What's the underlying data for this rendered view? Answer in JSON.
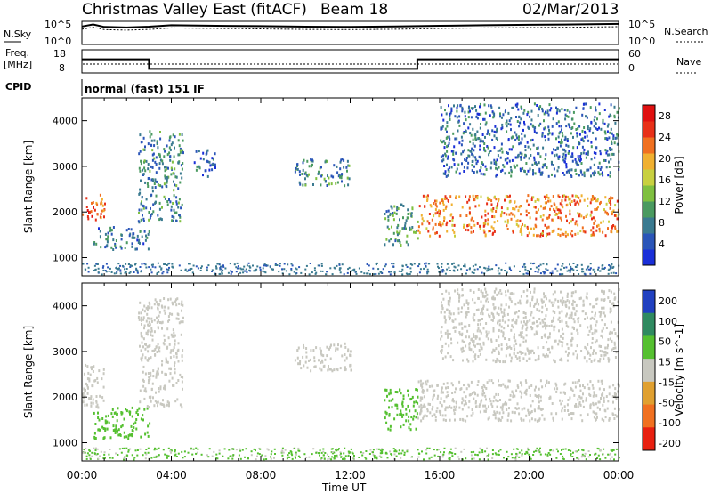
{
  "header": {
    "radar": "Christmas Valley East (fitACF)",
    "beam": "Beam 18",
    "date": "02/Mar/2013"
  },
  "noise_panel": {
    "left_label": "N.Sky",
    "right_label": "N.Search",
    "left_ticks": [
      "10^5",
      "10^0"
    ],
    "right_ticks": [
      "10^5",
      "10^0"
    ]
  },
  "freq_panel": {
    "left_label_1": "Freq.",
    "left_label_2": "[MHz]",
    "right_label": "Nave",
    "left_ticks": [
      "18",
      "8"
    ],
    "right_ticks": [
      "60",
      "0"
    ]
  },
  "cpid": {
    "label": "CPID",
    "value": "normal (fast) 151 IF"
  },
  "time_axis": {
    "label": "Time UT",
    "ticks": [
      "00:00",
      "04:00",
      "08:00",
      "12:00",
      "16:00",
      "20:00",
      "00:00"
    ]
  },
  "colors": {
    "power": [
      "#1a2fd8",
      "#2a55b8",
      "#3a7a90",
      "#4a9a60",
      "#7fc040",
      "#c8d040",
      "#f0b030",
      "#f07020",
      "#e83018",
      "#e01010"
    ],
    "velocity": [
      "#2040c0",
      "#2f8a60",
      "#55c030",
      "#c8c8c0",
      "#e0a030",
      "#f07020",
      "#e82010"
    ]
  },
  "chart_data": [
    {
      "type": "line",
      "title": "",
      "xlabel": "",
      "ylabel": "N.Sky",
      "x": [
        0,
        0.5,
        1,
        2,
        3,
        4,
        6,
        8,
        10,
        12,
        14,
        15,
        16,
        18,
        20,
        22,
        24
      ],
      "series": [
        {
          "values": [
            10000,
            30000,
            8000,
            6000,
            9000,
            20000,
            15000,
            12000,
            9000,
            8000,
            10000,
            12000,
            15000,
            20000,
            25000,
            30000,
            40000
          ]
        }
      ],
      "yscale": "log",
      "ylim": [
        1,
        100000
      ]
    },
    {
      "type": "line",
      "title": "",
      "ylabel": "Freq. [MHz]",
      "x": [
        0,
        3,
        3,
        15,
        15,
        24
      ],
      "series": [
        {
          "values": [
            14,
            14,
            9.5,
            9.5,
            14,
            14
          ]
        }
      ],
      "ylim": [
        8,
        18
      ]
    },
    {
      "type": "heatmap",
      "title": "",
      "xlabel": "Time UT",
      "ylabel": "Slant Range [km]",
      "colorbar_label": "Power [dB]",
      "colorbar_ticks": [
        4,
        8,
        12,
        16,
        20,
        24,
        28
      ],
      "colorbar_range": [
        0,
        30
      ],
      "ylim": [
        600,
        4500
      ],
      "yticks": [
        1000,
        2000,
        3000,
        4000
      ],
      "xlim": [
        0,
        24
      ],
      "regions": [
        {
          "t0": 0.0,
          "t1": 1.0,
          "r0": 1800,
          "r1": 2400,
          "value": 24
        },
        {
          "t0": 0.5,
          "t1": 3.0,
          "r0": 1200,
          "r1": 1700,
          "value": 7
        },
        {
          "t0": 2.5,
          "t1": 4.5,
          "r0": 1800,
          "r1": 3800,
          "value": 8
        },
        {
          "t0": 5.0,
          "t1": 6.0,
          "r0": 2800,
          "r1": 3400,
          "value": 6
        },
        {
          "t0": 9.5,
          "t1": 12.0,
          "r0": 2600,
          "r1": 3200,
          "value": 8
        },
        {
          "t0": 13.5,
          "t1": 15.0,
          "r0": 1300,
          "r1": 2200,
          "value": 10
        },
        {
          "t0": 15.0,
          "t1": 24.0,
          "r0": 1500,
          "r1": 2400,
          "value": 22
        },
        {
          "t0": 16.0,
          "t1": 24.0,
          "r0": 2800,
          "r1": 4400,
          "value": 6
        }
      ]
    },
    {
      "type": "heatmap",
      "title": "",
      "xlabel": "Time UT",
      "ylabel": "Slant Range [km]",
      "colorbar_label": "Velocity [m s^-1]",
      "colorbar_ticks": [
        200,
        100,
        50,
        15,
        -15,
        -50,
        -100,
        -200
      ],
      "ylim": [
        600,
        4500
      ],
      "yticks": [
        1000,
        2000,
        3000,
        4000
      ],
      "xlim": [
        0,
        24
      ],
      "regions": [
        {
          "t0": 0.0,
          "t1": 1.0,
          "r0": 1800,
          "r1": 2800,
          "value": 0
        },
        {
          "t0": 0.5,
          "t1": 3.0,
          "r0": 1100,
          "r1": 1800,
          "value": 60
        },
        {
          "t0": 2.5,
          "t1": 4.5,
          "r0": 1800,
          "r1": 4200,
          "value": 0
        },
        {
          "t0": 9.5,
          "t1": 12.0,
          "r0": 2600,
          "r1": 3200,
          "value": 0
        },
        {
          "t0": 13.5,
          "t1": 15.0,
          "r0": 1300,
          "r1": 2200,
          "value": 50
        },
        {
          "t0": 15.0,
          "t1": 24.0,
          "r0": 1500,
          "r1": 2400,
          "value": 0
        },
        {
          "t0": 16.0,
          "t1": 24.0,
          "r0": 2800,
          "r1": 4400,
          "value": 0
        }
      ]
    }
  ]
}
